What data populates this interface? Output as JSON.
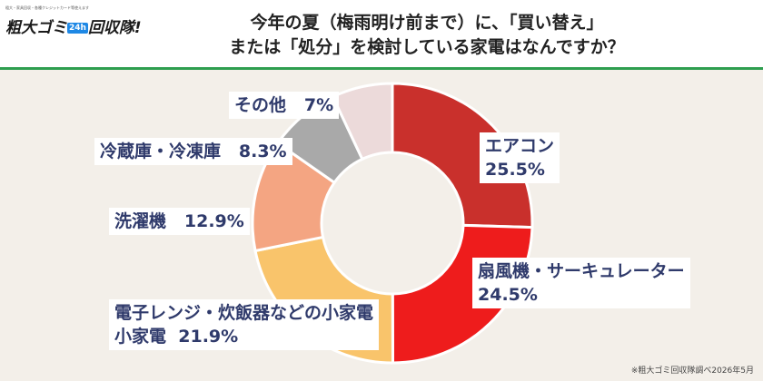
{
  "brand": {
    "tagline": "粗大・家具回収・各種クレジットカード等使えます",
    "name_pre": "粗大ゴミ",
    "name_mark": "24h",
    "name_post": "回収隊!"
  },
  "title_line1": "今年の夏（梅雨明け前まで）に、「買い替え」",
  "title_line2": "または「処分」を検討している家電はなんですか？",
  "source_note": "※粗大ゴミ回収隊調べ2026年5月",
  "chart_data": {
    "type": "pie",
    "donut": true,
    "start": "top",
    "direction": "clockwise",
    "slices": [
      {
        "label": "エアコン",
        "value": 25.5,
        "value_text": "25.5%",
        "color": "#c9302c"
      },
      {
        "label": "扇風機・サーキュレーター",
        "value": 24.5,
        "value_text": "24.5%",
        "color": "#ee1c1c"
      },
      {
        "label": "電子レンジ・炊飯器などの小家電",
        "value": 21.9,
        "value_text": "21.9%",
        "color": "#f9c46b"
      },
      {
        "label": "洗濯機",
        "value": 12.9,
        "value_text": "12.9%",
        "color": "#f4a582"
      },
      {
        "label": "冷蔵庫・冷凍庫",
        "value": 8.3,
        "value_text": "8.3%",
        "color": "#a9a9a9"
      },
      {
        "label": "その他",
        "value": 7,
        "value_text": "7%",
        "color": "#ecdada"
      }
    ]
  }
}
